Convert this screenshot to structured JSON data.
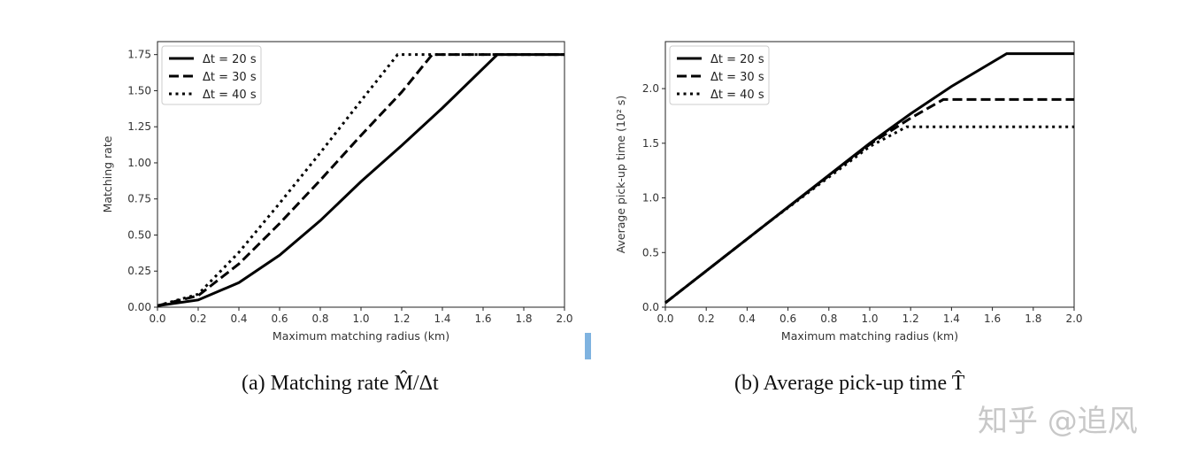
{
  "chart_data": [
    {
      "type": "line",
      "xlabel": "Maximum matching radius (km)",
      "ylabel": "Matching rate",
      "xlim": [
        0,
        2.0
      ],
      "ylim": [
        0,
        1.84
      ],
      "xticks": [
        "0.0",
        "0.2",
        "0.4",
        "0.6",
        "0.8",
        "1.0",
        "1.2",
        "1.4",
        "1.6",
        "1.8",
        "2.0"
      ],
      "yticks": [
        "0.00",
        "0.25",
        "0.50",
        "0.75",
        "1.00",
        "1.25",
        "1.50",
        "1.75"
      ],
      "legend": "top-left",
      "grid": false,
      "series": [
        {
          "name": "Δt = 20 s",
          "style": "solid",
          "x": [
            0,
            0.2,
            0.4,
            0.6,
            0.8,
            1.0,
            1.2,
            1.4,
            1.67,
            2.0
          ],
          "y": [
            0.01,
            0.05,
            0.17,
            0.36,
            0.6,
            0.87,
            1.12,
            1.38,
            1.75,
            1.75
          ]
        },
        {
          "name": "Δt = 30 s",
          "style": "dashed",
          "x": [
            0,
            0.2,
            0.4,
            0.6,
            0.8,
            1.0,
            1.2,
            1.35,
            2.0
          ],
          "y": [
            0.01,
            0.08,
            0.3,
            0.58,
            0.88,
            1.19,
            1.49,
            1.75,
            1.75
          ]
        },
        {
          "name": "Δt = 40 s",
          "style": "dotted",
          "x": [
            0,
            0.2,
            0.4,
            0.6,
            0.8,
            1.0,
            1.18,
            2.0
          ],
          "y": [
            0.01,
            0.09,
            0.38,
            0.72,
            1.07,
            1.43,
            1.75,
            1.75
          ]
        }
      ]
    },
    {
      "type": "line",
      "xlabel": "Maximum matching radius (km)",
      "ylabel": "Average pick-up time (10² s)",
      "xlim": [
        0,
        2.0
      ],
      "ylim": [
        0,
        2.43
      ],
      "xticks": [
        "0.0",
        "0.2",
        "0.4",
        "0.6",
        "0.8",
        "1.0",
        "1.2",
        "1.4",
        "1.6",
        "1.8",
        "2.0"
      ],
      "yticks": [
        "0.0",
        "0.5",
        "1.0",
        "1.5",
        "2.0"
      ],
      "legend": "top-left",
      "grid": false,
      "series": [
        {
          "name": "Δt = 20 s",
          "style": "solid",
          "x": [
            0,
            0.5,
            1.0,
            1.2,
            1.4,
            1.67,
            2.0
          ],
          "y": [
            0.04,
            0.77,
            1.5,
            1.77,
            2.02,
            2.32,
            2.32
          ]
        },
        {
          "name": "Δt = 30 s",
          "style": "dashed",
          "x": [
            0,
            0.5,
            1.0,
            1.2,
            1.36,
            2.0
          ],
          "y": [
            0.04,
            0.77,
            1.49,
            1.73,
            1.9,
            1.9
          ]
        },
        {
          "name": "Δt = 40 s",
          "style": "dotted",
          "x": [
            0,
            0.5,
            1.0,
            1.18,
            2.0
          ],
          "y": [
            0.04,
            0.77,
            1.47,
            1.65,
            1.65
          ]
        }
      ]
    }
  ],
  "captions": [
    "(a)  Matching rate M̂/Δt",
    "(b) Average pick-up time T̂"
  ],
  "watermark": "知乎 @追风",
  "colors": {
    "line": "#000000",
    "accent_bar": "#7fb3e0"
  }
}
